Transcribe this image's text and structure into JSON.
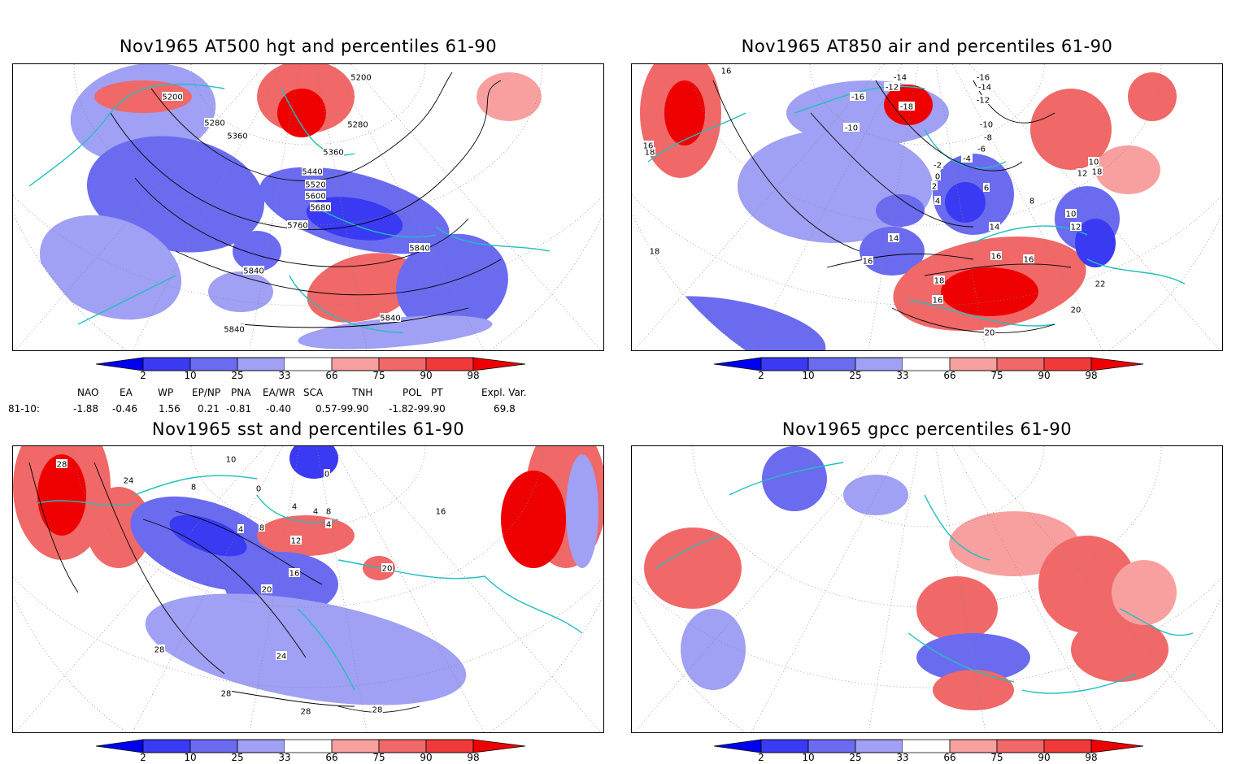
{
  "panels": [
    {
      "id": "hgt",
      "title": "Nov1965 AT500 hgt and percentiles 61-90",
      "contour_labels": [
        "5200",
        "5200",
        "5280",
        "5360",
        "5280",
        "5360",
        "5440",
        "5520",
        "5600",
        "5680",
        "5760",
        "5840",
        "5840",
        "5840",
        "5840"
      ]
    },
    {
      "id": "air",
      "title": "Nov1965 AT850 air and percentiles 61-90",
      "contour_labels": [
        "16",
        "-14",
        "-12",
        "-16",
        "-18",
        "-16",
        "-10",
        "-14",
        "-12",
        "-10",
        "-8",
        "-6",
        "-4",
        "-2",
        "0",
        "2",
        "4",
        "6",
        "8",
        "10",
        "12",
        "14",
        "10",
        "12",
        "14",
        "16",
        "16",
        "18",
        "16",
        "22",
        "20",
        "20",
        "18",
        "18",
        "16",
        "18",
        "16"
      ]
    },
    {
      "id": "sst",
      "title": "Nov1965 sst and percentiles 61-90",
      "contour_labels": [
        "28",
        "24",
        "10",
        "8",
        "0",
        "0",
        "4",
        "4",
        "4",
        "8",
        "8",
        "4",
        "12",
        "16",
        "20",
        "20",
        "28",
        "24",
        "28",
        "28",
        "28",
        "16"
      ]
    },
    {
      "id": "gpcc",
      "title": "Nov1965 gpcc percentiles 61-90",
      "contour_labels": []
    }
  ],
  "colorbar": {
    "labels": [
      "2",
      "10",
      "25",
      "33",
      "66",
      "75",
      "90",
      "98"
    ],
    "colors": [
      "#0000ee",
      "#3a3af2",
      "#6b6bf0",
      "#a0a0f4",
      "#ffffff",
      "#f8a0a0",
      "#f06868",
      "#f03a3a",
      "#ee0000"
    ]
  },
  "indices": {
    "headers": [
      "NAO",
      "EA",
      "WP",
      "EP/NP",
      "PNA",
      "EA/WR",
      "SCA",
      "TNH",
      "POL",
      "PT",
      "Expl. Var."
    ],
    "row_label": "81-10:",
    "values": [
      "-1.88",
      "-0.46",
      "1.56",
      "0.21",
      "-0.81",
      "-0.40",
      "0.57-99.90",
      "-1.82-99.90",
      "69.8"
    ]
  },
  "map_colors": {
    "coast": "#20c0c0",
    "contour": "#000000",
    "grid": "#888888"
  }
}
